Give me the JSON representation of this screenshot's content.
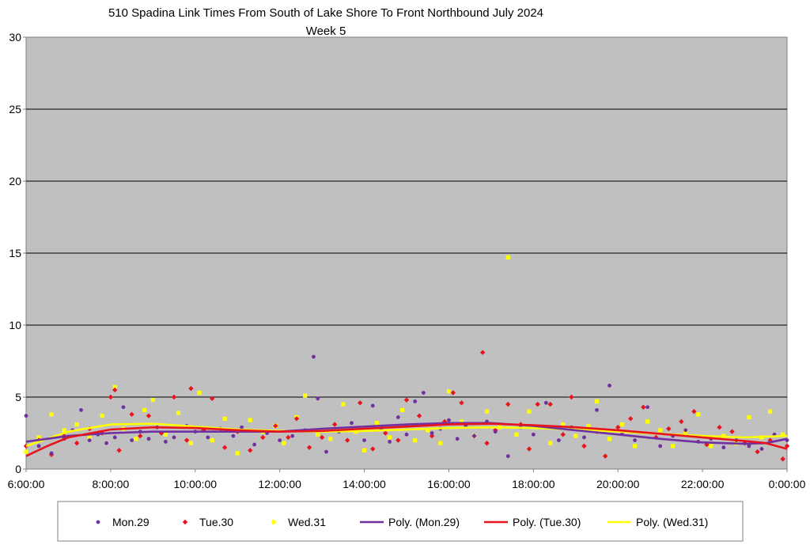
{
  "chart_data": {
    "type": "scatter",
    "title": "510 Spadina Link Times From South of Lake Shore To Front Northbound July 2024",
    "subtitle": "Week 5",
    "xlabel": "",
    "ylabel": "",
    "xlim": [
      6,
      24
    ],
    "ylim": [
      0,
      30
    ],
    "x_ticks": [
      "6:00:00",
      "8:00:00",
      "10:00:00",
      "12:00:00",
      "14:00:00",
      "16:00:00",
      "18:00:00",
      "20:00:00",
      "22:00:00",
      "0:00:00"
    ],
    "y_ticks": [
      "0",
      "5",
      "10",
      "15",
      "20",
      "25",
      "30"
    ],
    "grid": true,
    "legend_position": "bottom",
    "colors": {
      "plot_background": "#c0c0c0",
      "gridline": "#000000",
      "mon": "#7030a0",
      "tue": "#e8141c",
      "wed": "#ffff00"
    },
    "series": [
      {
        "name": "Mon.29",
        "marker": "circle",
        "points": [
          [
            6.0,
            3.7
          ],
          [
            6.3,
            1.6
          ],
          [
            6.6,
            1.1
          ],
          [
            6.9,
            2.1
          ],
          [
            7.1,
            2.7
          ],
          [
            7.3,
            4.1
          ],
          [
            7.5,
            2.0
          ],
          [
            7.7,
            2.4
          ],
          [
            7.9,
            1.8
          ],
          [
            8.1,
            2.2
          ],
          [
            8.3,
            4.3
          ],
          [
            8.5,
            2.0
          ],
          [
            8.7,
            2.6
          ],
          [
            8.9,
            2.1
          ],
          [
            9.1,
            2.9
          ],
          [
            9.3,
            1.9
          ],
          [
            9.5,
            2.2
          ],
          [
            9.8,
            3.0
          ],
          [
            10.0,
            2.6
          ],
          [
            10.3,
            2.2
          ],
          [
            10.6,
            2.8
          ],
          [
            10.9,
            2.3
          ],
          [
            11.1,
            2.9
          ],
          [
            11.4,
            1.7
          ],
          [
            11.7,
            2.5
          ],
          [
            12.0,
            2.0
          ],
          [
            12.3,
            2.3
          ],
          [
            12.6,
            2.7
          ],
          [
            12.8,
            7.8
          ],
          [
            12.9,
            4.9
          ],
          [
            13.1,
            1.2
          ],
          [
            13.4,
            2.6
          ],
          [
            13.7,
            3.2
          ],
          [
            14.0,
            2.0
          ],
          [
            14.2,
            4.4
          ],
          [
            14.4,
            2.8
          ],
          [
            14.6,
            1.9
          ],
          [
            14.8,
            3.6
          ],
          [
            15.0,
            2.4
          ],
          [
            15.2,
            4.7
          ],
          [
            15.4,
            5.3
          ],
          [
            15.6,
            2.5
          ],
          [
            15.8,
            2.8
          ],
          [
            16.0,
            3.4
          ],
          [
            16.2,
            2.1
          ],
          [
            16.4,
            3.0
          ],
          [
            16.6,
            2.3
          ],
          [
            16.9,
            3.3
          ],
          [
            17.1,
            2.6
          ],
          [
            17.4,
            0.9
          ],
          [
            17.7,
            2.9
          ],
          [
            18.0,
            2.4
          ],
          [
            18.3,
            4.6
          ],
          [
            18.6,
            2.0
          ],
          [
            18.9,
            2.9
          ],
          [
            19.2,
            2.2
          ],
          [
            19.5,
            4.1
          ],
          [
            19.8,
            5.8
          ],
          [
            20.1,
            2.5
          ],
          [
            20.4,
            2.0
          ],
          [
            20.7,
            4.3
          ],
          [
            21.0,
            1.6
          ],
          [
            21.3,
            2.3
          ],
          [
            21.6,
            2.7
          ],
          [
            21.9,
            1.9
          ],
          [
            22.2,
            2.1
          ],
          [
            22.5,
            1.5
          ],
          [
            22.8,
            2.0
          ],
          [
            23.1,
            1.6
          ],
          [
            23.4,
            1.4
          ],
          [
            23.7,
            2.4
          ],
          [
            24.0,
            2.0
          ]
        ],
        "trend": [
          [
            6.0,
            1.9
          ],
          [
            7.0,
            2.3
          ],
          [
            8.0,
            2.5
          ],
          [
            9.0,
            2.6
          ],
          [
            10.0,
            2.6
          ],
          [
            11.0,
            2.6
          ],
          [
            12.0,
            2.6
          ],
          [
            13.0,
            2.8
          ],
          [
            14.0,
            2.95
          ],
          [
            15.0,
            3.1
          ],
          [
            16.0,
            3.2
          ],
          [
            17.0,
            3.2
          ],
          [
            18.0,
            3.0
          ],
          [
            19.0,
            2.7
          ],
          [
            20.0,
            2.4
          ],
          [
            21.0,
            2.1
          ],
          [
            22.0,
            1.85
          ],
          [
            23.0,
            1.75
          ],
          [
            23.5,
            1.8
          ],
          [
            24.0,
            2.1
          ]
        ]
      },
      {
        "name": "Tue.30",
        "marker": "diamond",
        "points": [
          [
            6.0,
            1.6
          ],
          [
            6.3,
            2.0
          ],
          [
            6.6,
            1.0
          ],
          [
            6.9,
            2.3
          ],
          [
            7.2,
            1.8
          ],
          [
            7.5,
            2.8
          ],
          [
            7.8,
            2.5
          ],
          [
            8.0,
            5.0
          ],
          [
            8.1,
            5.5
          ],
          [
            8.2,
            1.3
          ],
          [
            8.5,
            3.8
          ],
          [
            8.7,
            2.3
          ],
          [
            8.9,
            3.7
          ],
          [
            9.2,
            2.5
          ],
          [
            9.5,
            5.0
          ],
          [
            9.8,
            2.0
          ],
          [
            9.9,
            5.6
          ],
          [
            10.2,
            2.7
          ],
          [
            10.4,
            4.9
          ],
          [
            10.7,
            1.5
          ],
          [
            11.0,
            2.6
          ],
          [
            11.3,
            1.3
          ],
          [
            11.6,
            2.2
          ],
          [
            11.9,
            3.0
          ],
          [
            12.2,
            2.2
          ],
          [
            12.4,
            3.5
          ],
          [
            12.7,
            1.5
          ],
          [
            13.0,
            2.2
          ],
          [
            13.3,
            3.1
          ],
          [
            13.6,
            2.0
          ],
          [
            13.9,
            4.6
          ],
          [
            14.2,
            1.4
          ],
          [
            14.5,
            2.5
          ],
          [
            14.8,
            2.0
          ],
          [
            15.0,
            4.8
          ],
          [
            15.3,
            3.7
          ],
          [
            15.6,
            2.3
          ],
          [
            15.9,
            3.3
          ],
          [
            16.1,
            5.3
          ],
          [
            16.3,
            4.6
          ],
          [
            16.6,
            2.3
          ],
          [
            16.8,
            8.1
          ],
          [
            16.9,
            1.8
          ],
          [
            17.1,
            2.7
          ],
          [
            17.4,
            4.5
          ],
          [
            17.7,
            3.1
          ],
          [
            17.9,
            1.4
          ],
          [
            18.1,
            4.5
          ],
          [
            18.4,
            4.5
          ],
          [
            18.7,
            2.4
          ],
          [
            18.9,
            5.0
          ],
          [
            19.2,
            1.6
          ],
          [
            19.5,
            2.6
          ],
          [
            19.7,
            0.9
          ],
          [
            20.0,
            2.9
          ],
          [
            20.3,
            3.5
          ],
          [
            20.6,
            4.3
          ],
          [
            20.9,
            2.2
          ],
          [
            21.2,
            2.8
          ],
          [
            21.5,
            3.3
          ],
          [
            21.8,
            4.0
          ],
          [
            22.1,
            1.7
          ],
          [
            22.4,
            2.9
          ],
          [
            22.7,
            2.6
          ],
          [
            23.0,
            1.8
          ],
          [
            23.3,
            1.2
          ],
          [
            23.6,
            2.0
          ],
          [
            23.9,
            0.7
          ],
          [
            24.0,
            1.6
          ]
        ],
        "trend": [
          [
            6.0,
            0.9
          ],
          [
            6.5,
            1.6
          ],
          [
            7.0,
            2.2
          ],
          [
            8.0,
            2.75
          ],
          [
            9.0,
            2.9
          ],
          [
            10.0,
            2.85
          ],
          [
            11.0,
            2.7
          ],
          [
            12.0,
            2.6
          ],
          [
            13.0,
            2.65
          ],
          [
            14.0,
            2.8
          ],
          [
            15.0,
            2.95
          ],
          [
            16.0,
            3.1
          ],
          [
            17.0,
            3.15
          ],
          [
            18.0,
            3.05
          ],
          [
            19.0,
            2.9
          ],
          [
            20.0,
            2.7
          ],
          [
            21.0,
            2.45
          ],
          [
            22.0,
            2.2
          ],
          [
            23.0,
            1.95
          ],
          [
            23.5,
            1.8
          ],
          [
            24.0,
            1.4
          ]
        ]
      },
      {
        "name": "Wed.31",
        "marker": "square",
        "points": [
          [
            6.0,
            1.2
          ],
          [
            6.3,
            2.2
          ],
          [
            6.6,
            3.8
          ],
          [
            6.9,
            2.7
          ],
          [
            7.2,
            3.1
          ],
          [
            7.5,
            2.2
          ],
          [
            7.8,
            3.7
          ],
          [
            8.1,
            5.7
          ],
          [
            8.3,
            2.8
          ],
          [
            8.6,
            2.1
          ],
          [
            8.8,
            4.1
          ],
          [
            9.0,
            4.8
          ],
          [
            9.3,
            2.4
          ],
          [
            9.6,
            3.9
          ],
          [
            9.9,
            1.8
          ],
          [
            10.1,
            5.3
          ],
          [
            10.4,
            2.0
          ],
          [
            10.7,
            3.5
          ],
          [
            11.0,
            1.1
          ],
          [
            11.3,
            3.4
          ],
          [
            11.6,
            2.6
          ],
          [
            11.9,
            3.0
          ],
          [
            12.1,
            1.8
          ],
          [
            12.4,
            3.6
          ],
          [
            12.6,
            5.1
          ],
          [
            12.9,
            2.4
          ],
          [
            13.2,
            2.1
          ],
          [
            13.5,
            4.5
          ],
          [
            13.8,
            2.6
          ],
          [
            14.0,
            1.3
          ],
          [
            14.3,
            3.2
          ],
          [
            14.6,
            2.2
          ],
          [
            14.9,
            4.1
          ],
          [
            15.2,
            2.0
          ],
          [
            15.5,
            2.7
          ],
          [
            15.8,
            1.8
          ],
          [
            16.0,
            5.4
          ],
          [
            16.3,
            3.3
          ],
          [
            16.6,
            2.3
          ],
          [
            16.9,
            4.0
          ],
          [
            17.2,
            2.9
          ],
          [
            17.4,
            14.7
          ],
          [
            17.6,
            2.4
          ],
          [
            17.9,
            4.0
          ],
          [
            18.1,
            2.9
          ],
          [
            18.4,
            1.8
          ],
          [
            18.7,
            3.1
          ],
          [
            19.0,
            2.3
          ],
          [
            19.3,
            3.0
          ],
          [
            19.5,
            4.7
          ],
          [
            19.8,
            2.1
          ],
          [
            20.1,
            3.1
          ],
          [
            20.4,
            1.6
          ],
          [
            20.7,
            3.3
          ],
          [
            21.0,
            2.7
          ],
          [
            21.3,
            1.6
          ],
          [
            21.6,
            2.6
          ],
          [
            21.9,
            3.8
          ],
          [
            22.2,
            1.6
          ],
          [
            22.5,
            2.3
          ],
          [
            22.8,
            1.8
          ],
          [
            23.1,
            3.6
          ],
          [
            23.4,
            2.2
          ],
          [
            23.6,
            4.0
          ],
          [
            23.9,
            2.4
          ]
        ],
        "trend": [
          [
            6.0,
            1.6
          ],
          [
            7.0,
            2.6
          ],
          [
            8.0,
            3.1
          ],
          [
            9.0,
            3.15
          ],
          [
            10.0,
            2.95
          ],
          [
            11.0,
            2.75
          ],
          [
            12.0,
            2.65
          ],
          [
            13.0,
            2.6
          ],
          [
            14.0,
            2.65
          ],
          [
            15.0,
            2.75
          ],
          [
            16.0,
            2.85
          ],
          [
            17.0,
            2.9
          ],
          [
            18.0,
            2.85
          ],
          [
            19.0,
            2.75
          ],
          [
            20.0,
            2.6
          ],
          [
            21.0,
            2.45
          ],
          [
            22.0,
            2.3
          ],
          [
            23.0,
            2.2
          ],
          [
            24.0,
            2.3
          ]
        ]
      }
    ],
    "legend": [
      "Mon.29",
      "Tue.30",
      "Wed.31",
      "Poly. (Mon.29)",
      "Poly. (Tue.30)",
      "Poly. (Wed.31)"
    ]
  }
}
